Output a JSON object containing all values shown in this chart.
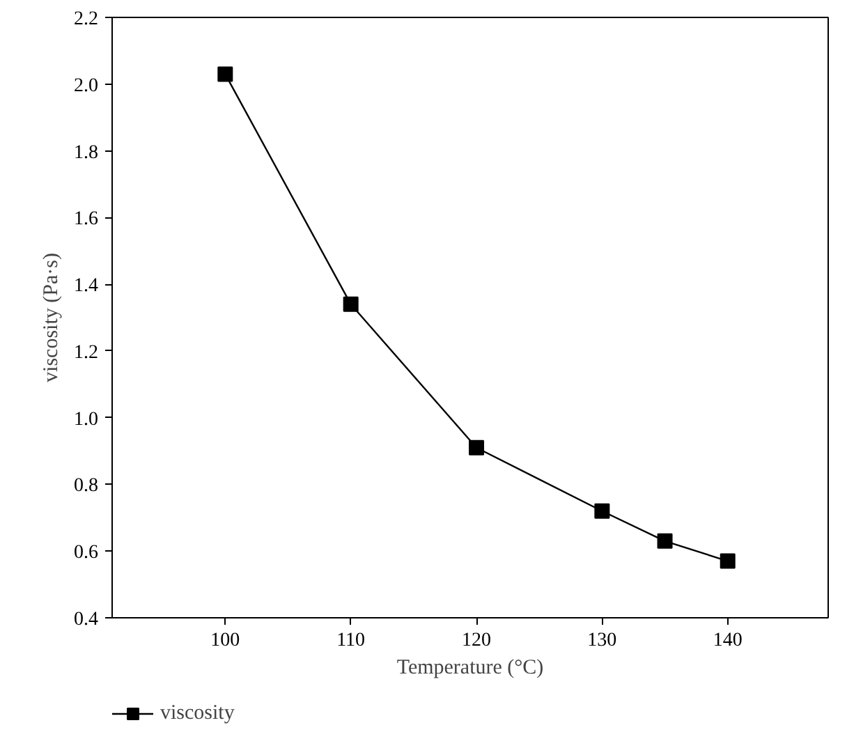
{
  "chart_data": {
    "type": "line",
    "xlabel": "Temperature (°C)",
    "ylabel": "viscosity (Pa·s)",
    "x": [
      100,
      110,
      120,
      130,
      135,
      140
    ],
    "series": [
      {
        "name": "viscosity",
        "color": "#000000",
        "values": [
          2.03,
          1.34,
          0.91,
          0.72,
          0.63,
          0.57
        ]
      }
    ],
    "xlim": [
      91,
      148
    ],
    "ylim": [
      0.4,
      2.2
    ],
    "xticks": [
      100,
      110,
      120,
      130,
      140
    ],
    "yticks": [
      {
        "value": 0.4,
        "label": "0.4"
      },
      {
        "value": 0.6,
        "label": "0.6"
      },
      {
        "value": 0.8,
        "label": "0.8"
      },
      {
        "value": 1.0,
        "label": "1.0"
      },
      {
        "value": 1.2,
        "label": "1.2"
      },
      {
        "value": 1.4,
        "label": "1.4"
      },
      {
        "value": 1.6,
        "label": "1.6"
      },
      {
        "value": 1.8,
        "label": "1.8"
      },
      {
        "value": 2.0,
        "label": "2.0"
      },
      {
        "value": 2.2,
        "label": "2.2"
      }
    ],
    "grid": false,
    "legend": "bottom",
    "marker": "square",
    "line_style": "solid"
  }
}
